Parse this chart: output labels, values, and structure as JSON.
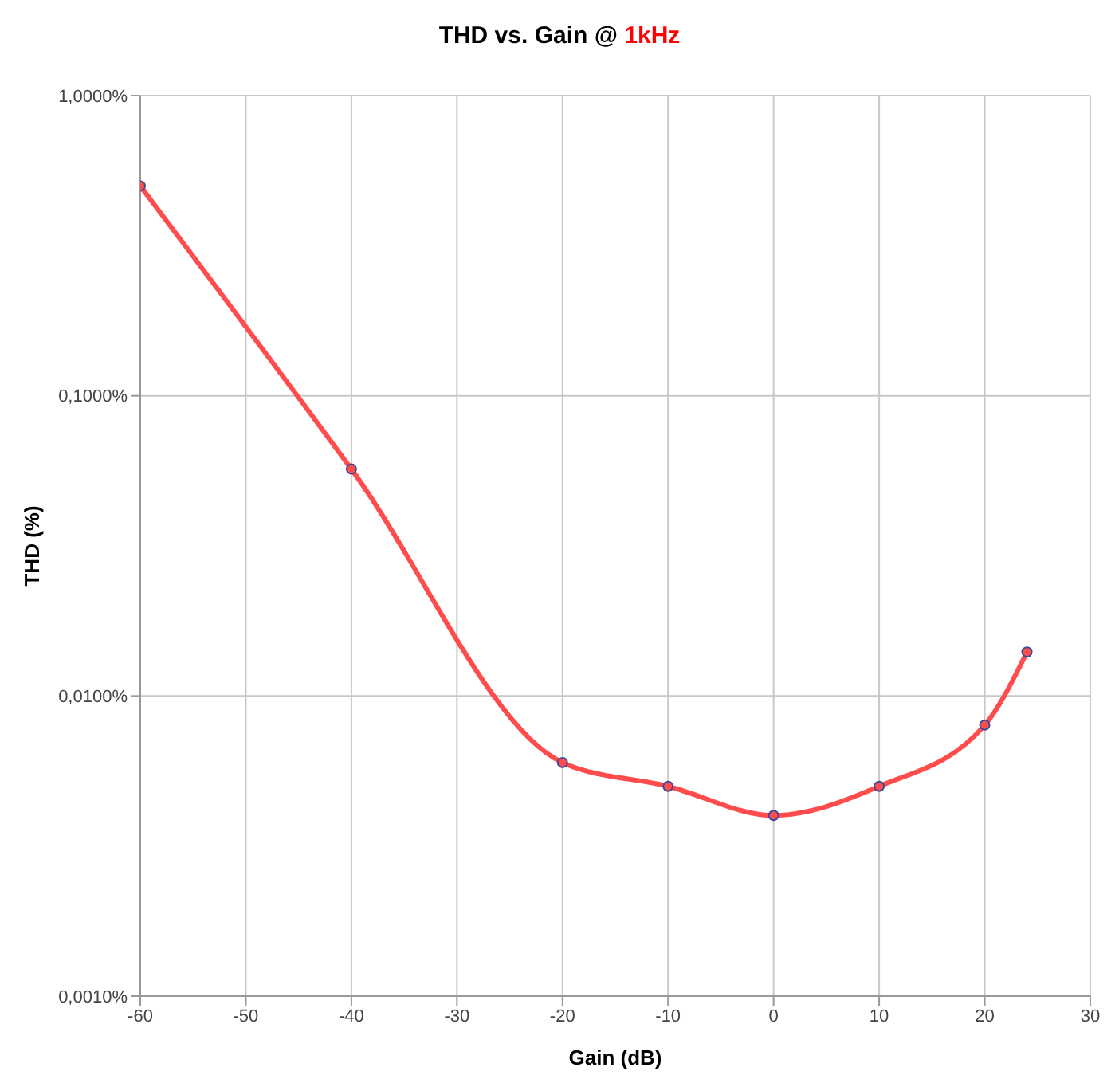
{
  "chart_data": {
    "type": "line",
    "title": "THD vs. Gain @ 1kHz",
    "xlabel": "Gain (dB)",
    "ylabel": "THD (%)",
    "x": [
      -60,
      -40,
      -20,
      -10,
      0,
      10,
      20,
      24
    ],
    "series": [
      {
        "color": "#ff4d4d",
        "values": [
          0.5,
          0.057,
          0.006,
          0.005,
          0.004,
          0.005,
          0.008,
          0.014
        ]
      }
    ],
    "xlim": [
      -60,
      30
    ],
    "xticks": [
      -60,
      -50,
      -40,
      -30,
      -20,
      -10,
      0,
      10,
      20,
      30
    ],
    "ylim": [
      0.001,
      1
    ],
    "yticks": [
      {
        "value": 0.001,
        "label": "0,0010%"
      },
      {
        "value": 0.01,
        "label": "0,0100%"
      },
      {
        "value": 0.1,
        "label": "0,1000%"
      },
      {
        "value": 1,
        "label": "1,0000%"
      }
    ],
    "log": "y",
    "grid": true,
    "marker": "circle",
    "line_style": "solid"
  }
}
